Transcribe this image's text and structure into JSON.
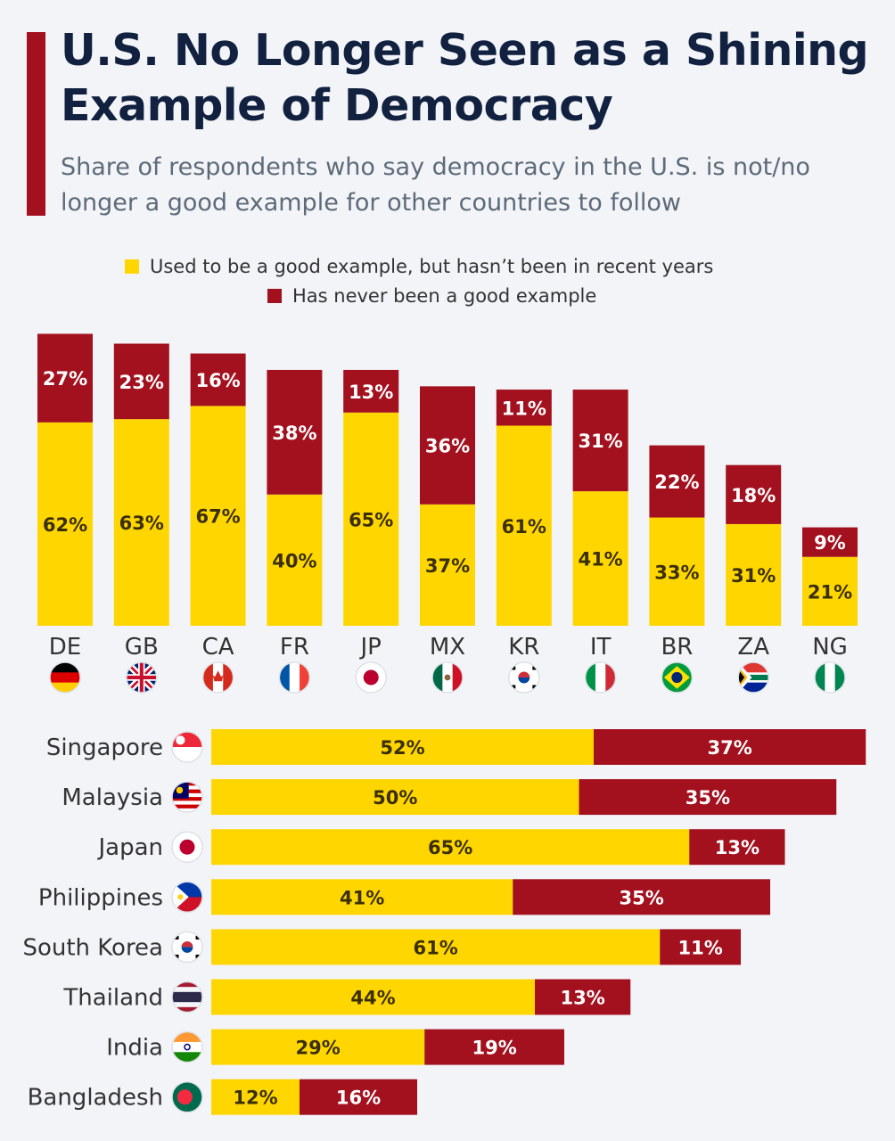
{
  "title": "U.S. No Longer Seen as a Shining Example of Democracy",
  "subtitle": "Share of respondents who say democracy in the U.S. is not/no longer a good example for other countries to follow",
  "legend": {
    "used_to_be": "Used to be a good example, but hasn’t been in recent years",
    "never": "Has never been a good example"
  },
  "colors": {
    "used_to_be": "#ffd600",
    "never": "#a3111f",
    "accent": "#a3111f",
    "title": "#11213f"
  },
  "chart_data": [
    {
      "type": "bar",
      "orientation": "vertical",
      "stacked": true,
      "categories": [
        "DE",
        "GB",
        "CA",
        "FR",
        "JP",
        "MX",
        "KR",
        "IT",
        "BR",
        "ZA",
        "NG"
      ],
      "category_icons": [
        "flag-germany-icon",
        "flag-uk-icon",
        "flag-canada-icon",
        "flag-france-icon",
        "flag-japan-icon",
        "flag-mexico-icon",
        "flag-south-korea-icon",
        "flag-italy-icon",
        "flag-brazil-icon",
        "flag-south-africa-icon",
        "flag-nigeria-icon"
      ],
      "series": [
        {
          "name": "Used to be a good example, but hasn’t been in recent years",
          "values": [
            62,
            63,
            67,
            40,
            65,
            37,
            61,
            41,
            33,
            31,
            21
          ]
        },
        {
          "name": "Has never been a good example",
          "values": [
            27,
            23,
            16,
            38,
            13,
            36,
            11,
            31,
            22,
            18,
            9
          ]
        }
      ],
      "value_suffix": "%",
      "legend_position": "top",
      "grid": false
    },
    {
      "type": "bar",
      "orientation": "horizontal",
      "stacked": true,
      "categories": [
        "Singapore",
        "Malaysia",
        "Japan",
        "Philippines",
        "South Korea",
        "Thailand",
        "India",
        "Bangladesh"
      ],
      "category_icons": [
        "flag-singapore-icon",
        "flag-malaysia-icon",
        "flag-japan-icon",
        "flag-philippines-icon",
        "flag-south-korea-icon",
        "flag-thailand-icon",
        "flag-india-icon",
        "flag-bangladesh-icon"
      ],
      "series": [
        {
          "name": "Used to be a good example, but hasn’t been in recent years",
          "values": [
            52,
            50,
            65,
            41,
            61,
            44,
            29,
            12
          ]
        },
        {
          "name": "Has never been a good example",
          "values": [
            37,
            35,
            13,
            35,
            11,
            13,
            19,
            16
          ]
        }
      ],
      "value_suffix": "%",
      "grid": false
    }
  ]
}
